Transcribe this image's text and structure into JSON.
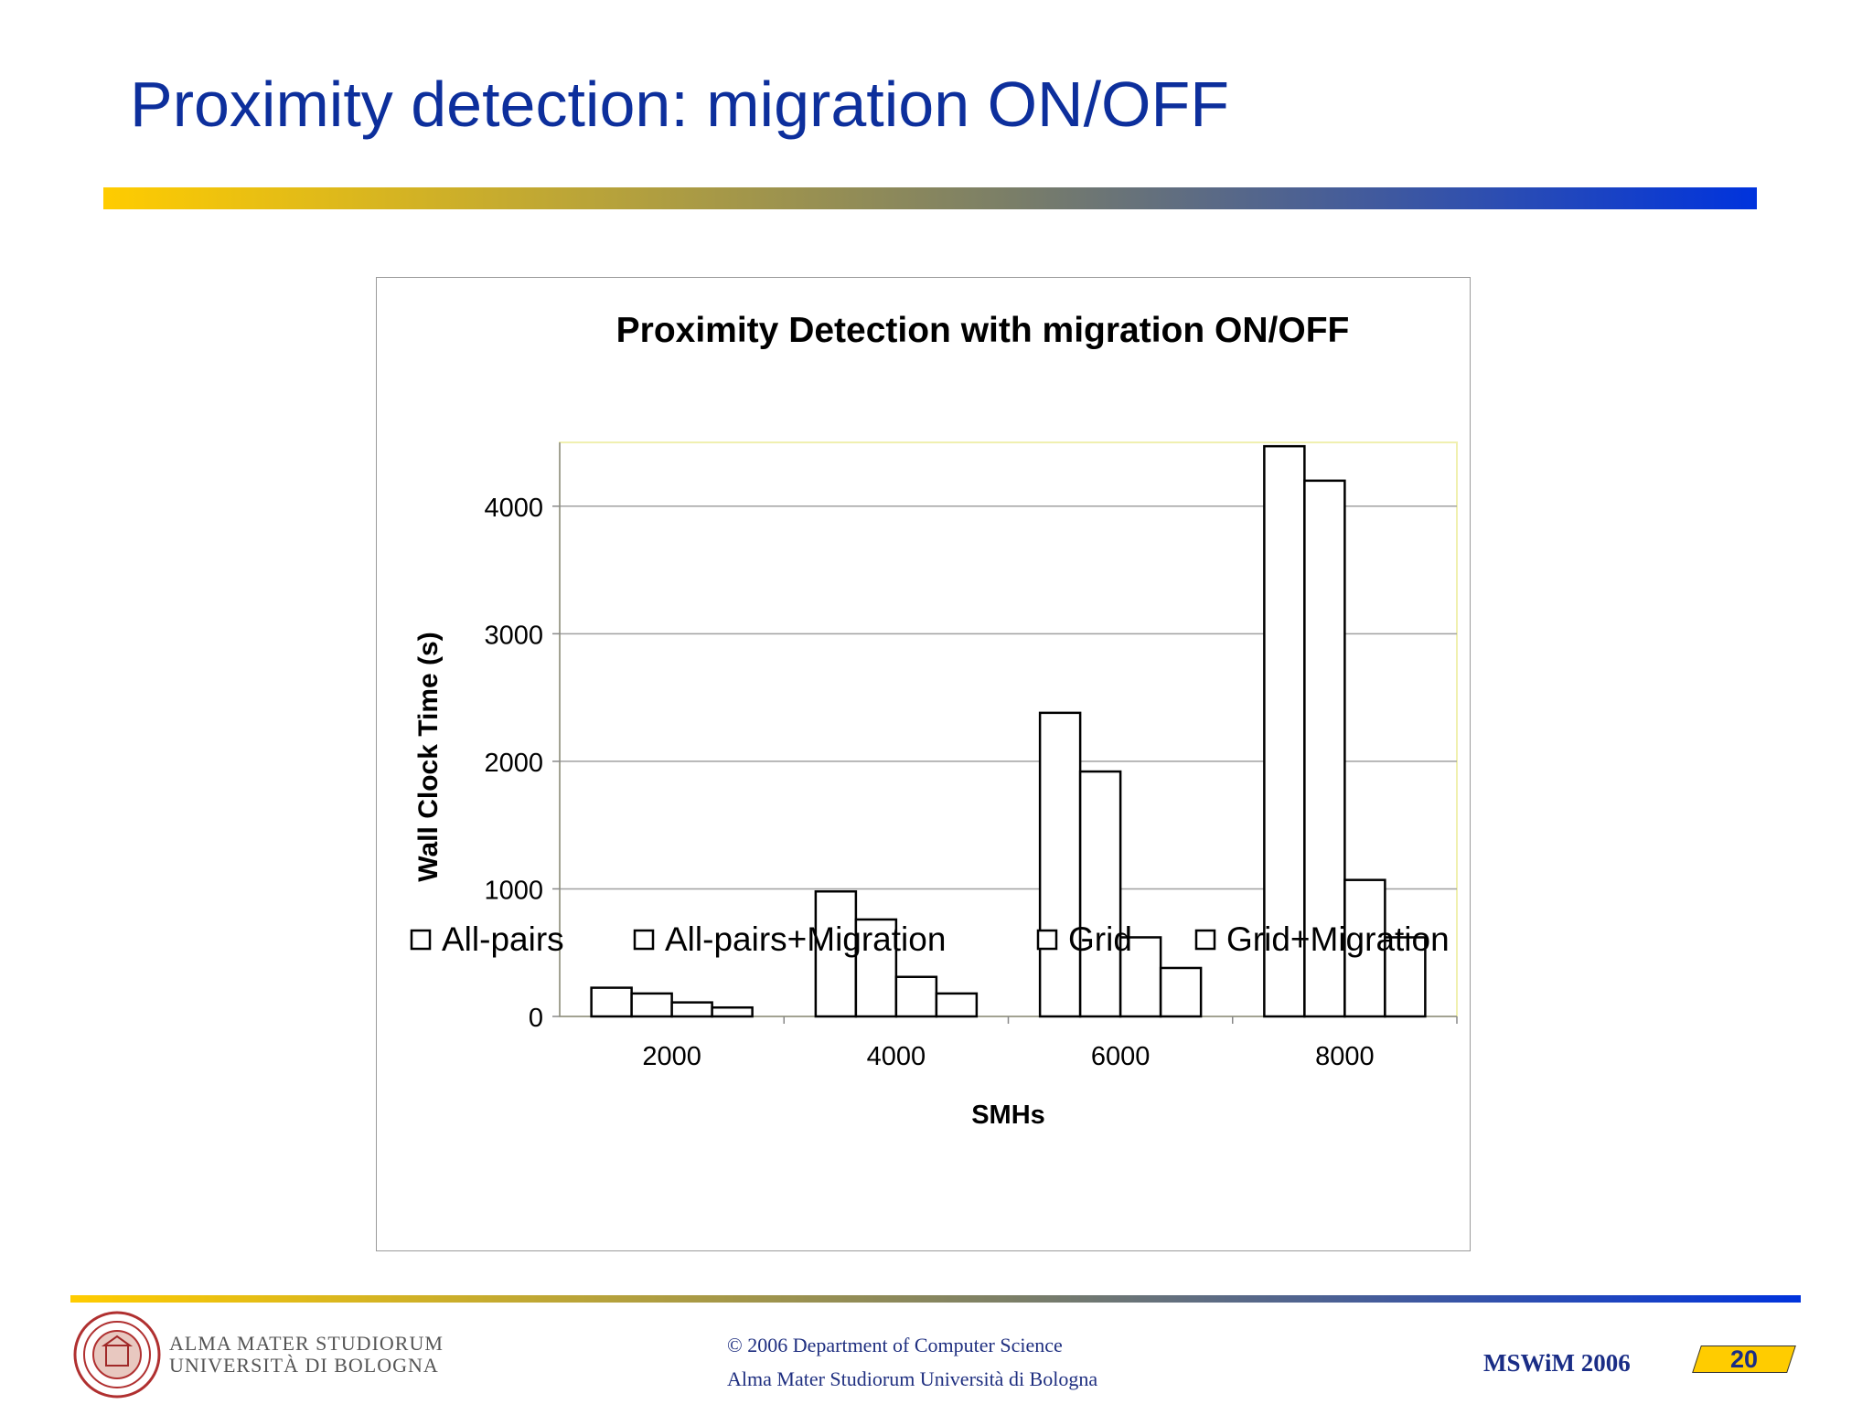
{
  "slide": {
    "title": "Proximity detection: migration ON/OFF"
  },
  "chart_data": {
    "type": "bar",
    "title": "Proximity Detection with migration ON/OFF",
    "xlabel": "SMHs",
    "ylabel": "Wall Clock Time (s)",
    "categories": [
      "2000",
      "4000",
      "6000",
      "8000"
    ],
    "series": [
      {
        "name": "All-pairs",
        "values": [
          225,
          980,
          2380,
          4470
        ]
      },
      {
        "name": "All-pairs+Migration",
        "values": [
          180,
          760,
          1920,
          4200
        ]
      },
      {
        "name": "Grid",
        "values": [
          110,
          310,
          620,
          1070
        ]
      },
      {
        "name": "Grid+Migration",
        "values": [
          70,
          180,
          380,
          620
        ]
      }
    ],
    "yticks": [
      "0",
      "1000",
      "2000",
      "3000",
      "4000"
    ],
    "ylim": [
      0,
      4500
    ],
    "grid": true,
    "legend_position": "bottom",
    "bar_fill": "#ffffff",
    "bar_stroke": "#000000",
    "gridline_color": "#a0a0a0"
  },
  "footer": {
    "logo_line1": "ALMA MATER STUDIORUM",
    "logo_line2": "UNIVERSITÀ DI BOLOGNA",
    "copyright": "© 2006 Department of Computer Science",
    "institution": "Alma Mater Studiorum Università di Bologna",
    "conference": "MSWiM 2006",
    "page_number": "20"
  },
  "colors": {
    "title": "#0d2f9c",
    "footer_text": "#1f2f80",
    "page_badge": "#ffcc00"
  }
}
